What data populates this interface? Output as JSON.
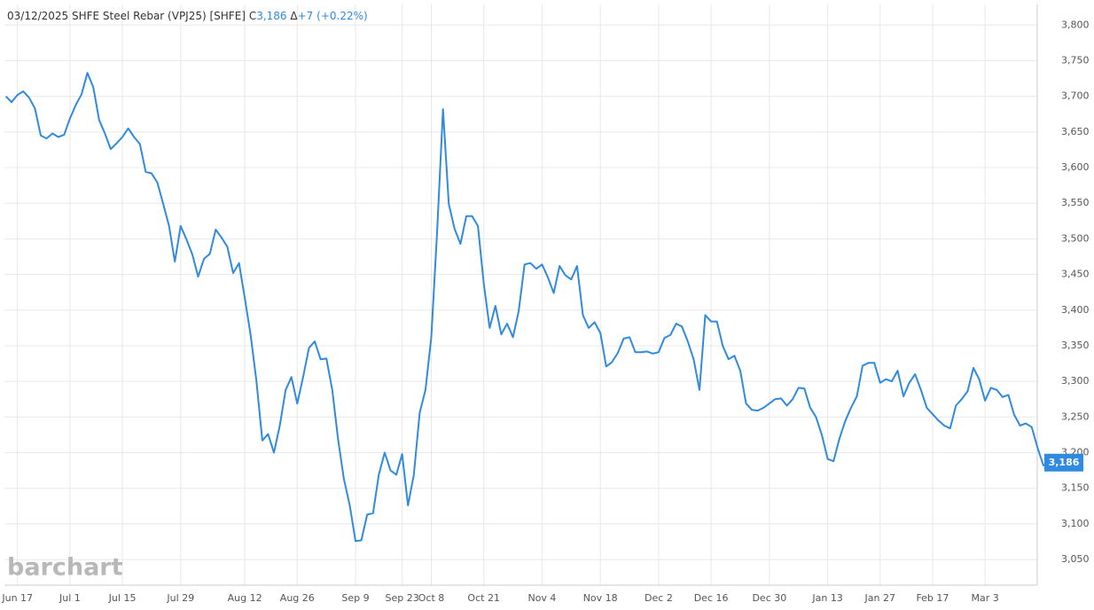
{
  "chart_data": {
    "type": "line",
    "header": {
      "title": "03/12/2025 SHFE Steel Rebar (VPJ25) [SHFE]",
      "close_prefix": "C",
      "close": "3,186",
      "change_prefix": "Δ",
      "change": "+7",
      "change_pct": "(+0.22%)"
    },
    "watermark": "barchart",
    "series": [
      {
        "name": "SHFE Steel Rebar (VPJ25)",
        "color": "#2f8ae0",
        "values": [
          3700,
          3692,
          3702,
          3707,
          3698,
          3683,
          3645,
          3641,
          3648,
          3643,
          3646,
          3669,
          3688,
          3703,
          3733,
          3713,
          3667,
          3648,
          3626,
          3634,
          3643,
          3655,
          3643,
          3633,
          3594,
          3592,
          3579,
          3549,
          3518,
          3468,
          3518,
          3499,
          3478,
          3447,
          3472,
          3479,
          3513,
          3502,
          3489,
          3452,
          3466,
          3417,
          3365,
          3300,
          3217,
          3226,
          3200,
          3238,
          3288,
          3306,
          3269,
          3306,
          3347,
          3356,
          3331,
          3332,
          3288,
          3219,
          3163,
          3126,
          3076,
          3077,
          3113,
          3115,
          3169,
          3200,
          3175,
          3169,
          3198,
          3126,
          3169,
          3256,
          3288,
          3362,
          3511,
          3682,
          3549,
          3514,
          3493,
          3532,
          3532,
          3518,
          3437,
          3375,
          3406,
          3366,
          3381,
          3362,
          3399,
          3464,
          3466,
          3458,
          3464,
          3446,
          3424,
          3462,
          3449,
          3443,
          3462,
          3393,
          3375,
          3383,
          3368,
          3321,
          3327,
          3340,
          3360,
          3362,
          3341,
          3341,
          3342,
          3339,
          3341,
          3361,
          3365,
          3381,
          3377,
          3356,
          3331,
          3288,
          3393,
          3384,
          3384,
          3350,
          3331,
          3336,
          3315,
          3269,
          3260,
          3259,
          3263,
          3269,
          3275,
          3276,
          3266,
          3275,
          3291,
          3290,
          3263,
          3250,
          3225,
          3191,
          3188,
          3219,
          3244,
          3263,
          3279,
          3322,
          3326,
          3326,
          3298,
          3303,
          3300,
          3315,
          3279,
          3298,
          3310,
          3288,
          3263,
          3254,
          3245,
          3238,
          3234,
          3266,
          3275,
          3286,
          3319,
          3303,
          3273,
          3291,
          3288,
          3278,
          3281,
          3253,
          3238,
          3241,
          3236,
          3207,
          3182,
          3186
        ]
      }
    ],
    "xlim": [
      -1,
      180
    ],
    "xticks": [
      {
        "value": 2,
        "label": "Jun 17"
      },
      {
        "value": 11,
        "label": "Jul 1"
      },
      {
        "value": 20,
        "label": "Jul 15"
      },
      {
        "value": 30,
        "label": "Jul 29"
      },
      {
        "value": 41,
        "label": "Aug 12"
      },
      {
        "value": 50,
        "label": "Aug 26"
      },
      {
        "value": 60,
        "label": "Sep 9"
      },
      {
        "value": 68,
        "label": "Sep 23"
      },
      {
        "value": 73,
        "label": "Oct 8"
      },
      {
        "value": 82,
        "label": "Oct 21"
      },
      {
        "value": 92,
        "label": "Nov 4"
      },
      {
        "value": 102,
        "label": "Nov 18"
      },
      {
        "value": 112,
        "label": "Dec 2"
      },
      {
        "value": 121,
        "label": "Dec 16"
      },
      {
        "value": 131,
        "label": "Dec 30"
      },
      {
        "value": 141,
        "label": "Jan 13"
      },
      {
        "value": 150,
        "label": "Jan 27"
      },
      {
        "value": 159,
        "label": "Feb 17"
      },
      {
        "value": 168,
        "label": "Mar 3"
      }
    ],
    "ylim": [
      3014,
      3829
    ],
    "yticks": [
      {
        "value": 3050,
        "label": "3,050"
      },
      {
        "value": 3100,
        "label": "3,100"
      },
      {
        "value": 3150,
        "label": "3,150"
      },
      {
        "value": 3200,
        "label": "3,200"
      },
      {
        "value": 3250,
        "label": "3,250"
      },
      {
        "value": 3300,
        "label": "3,300"
      },
      {
        "value": 3350,
        "label": "3,350"
      },
      {
        "value": 3400,
        "label": "3,400"
      },
      {
        "value": 3450,
        "label": "3,450"
      },
      {
        "value": 3500,
        "label": "3,500"
      },
      {
        "value": 3550,
        "label": "3,550"
      },
      {
        "value": 3600,
        "label": "3,600"
      },
      {
        "value": 3650,
        "label": "3,650"
      },
      {
        "value": 3700,
        "label": "3,700"
      },
      {
        "value": 3750,
        "label": "3,750"
      },
      {
        "value": 3800,
        "label": "3,800"
      }
    ],
    "grid": true
  }
}
